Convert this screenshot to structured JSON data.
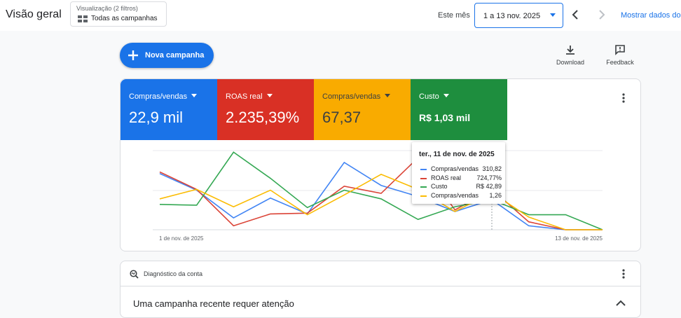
{
  "header": {
    "title": "Visão geral",
    "filter_caption": "Visualização (2 filtros)",
    "filter_value": "Todas as campanhas",
    "period_label": "Este mês",
    "date_range": "1 a 13 nov. 2025",
    "show_data": "Mostrar dados do"
  },
  "toolbar": {
    "new_campaign": "Nova campanha",
    "download": "Download",
    "feedback": "Feedback"
  },
  "metrics": [
    {
      "label": "Compras/vendas",
      "value": "22,9 mil",
      "color": "#1a73e8",
      "text_color": "#ffffff"
    },
    {
      "label": "ROAS real",
      "value": "2.235,39%",
      "color": "#d93025",
      "text_color": "#ffffff"
    },
    {
      "label": "Compras/vendas",
      "value": "67,37",
      "color": "#f9ab00",
      "text_color": "#3c4043"
    },
    {
      "label": "Custo",
      "value": "R$ 1,03 mil",
      "color": "#1e8e3e",
      "text_color": "#ffffff"
    }
  ],
  "chart_data": {
    "type": "line",
    "x": [
      "1 de nov. de 2025",
      null,
      null,
      null,
      null,
      null,
      null,
      null,
      null,
      null,
      null,
      null,
      "13 de nov. de 2025"
    ],
    "ylim": [
      0,
      100
    ],
    "series": [
      {
        "name": "Compras/vendas",
        "color": "#4285f4",
        "values": [
          71,
          50,
          15,
          40,
          20,
          85,
          56,
          42,
          23,
          38,
          5,
          0,
          0
        ]
      },
      {
        "name": "ROAS real",
        "color": "#db4437",
        "values": [
          73,
          51,
          5,
          20,
          21,
          55,
          46,
          91,
          25,
          51,
          10,
          0,
          0
        ]
      },
      {
        "name": "Custo",
        "color": "#34a853",
        "values": [
          32,
          31,
          98,
          65,
          28,
          50,
          39,
          13,
          29,
          38,
          19,
          19,
          0
        ]
      },
      {
        "name": "Compras/vendas",
        "color": "#fbbc04",
        "values": [
          39,
          51,
          29,
          50,
          19,
          44,
          70,
          51,
          23,
          47,
          16,
          0,
          0
        ]
      }
    ]
  },
  "tooltip": {
    "title": "ter., 11 de nov. de 2025",
    "values": [
      "310,82",
      "724,77%",
      "R$ 42,89",
      "1,26"
    ]
  },
  "diagnostics": {
    "title": "Diagnóstico da conta",
    "message": "Uma campanha recente requer atenção"
  }
}
